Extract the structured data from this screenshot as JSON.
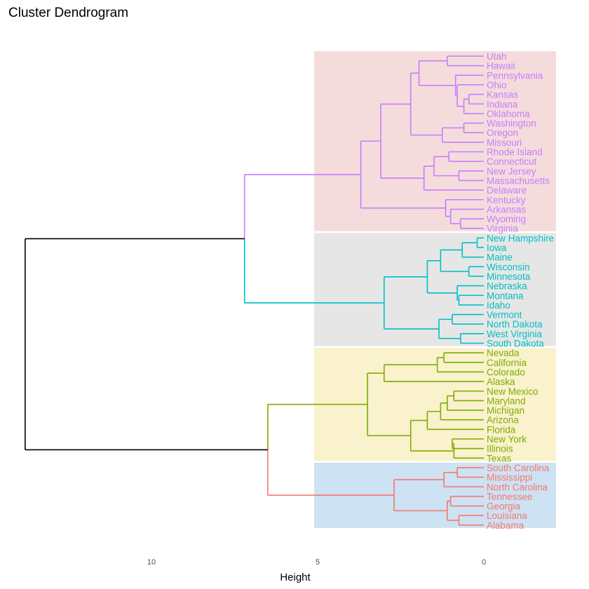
{
  "chart_data": {
    "type": "dendrogram",
    "title": "Cluster Dendrogram",
    "xlabel": "Height",
    "ylabel": "",
    "x_ticks": [
      10,
      5,
      0
    ],
    "orientation": "horizontal",
    "x_reversed": true,
    "leaves": [
      "Utah",
      "Hawaii",
      "Pennsylvania",
      "Ohio",
      "Kansas",
      "Indiana",
      "Oklahoma",
      "Washington",
      "Oregon",
      "Missouri",
      "Rhode Island",
      "Connecticut",
      "New Jersey",
      "Massachusetts",
      "Delaware",
      "Kentucky",
      "Arkansas",
      "Wyoming",
      "Virginia",
      "New Hampshire",
      "Iowa",
      "Maine",
      "Wisconsin",
      "Minnesota",
      "Nebraska",
      "Montana",
      "Idaho",
      "Vermont",
      "North Dakota",
      "West Virginia",
      "South Dakota",
      "Nevada",
      "California",
      "Colorado",
      "Alaska",
      "New Mexico",
      "Maryland",
      "Michigan",
      "Arizona",
      "Florida",
      "New York",
      "Illinois",
      "Texas",
      "South Carolina",
      "Mississippi",
      "North Carolina",
      "Tennessee",
      "Georgia",
      "Louisiana",
      "Alabama"
    ],
    "merges": [
      {
        "a": "Utah",
        "b": "Hawaii",
        "h": 1.1,
        "id": "m1"
      },
      {
        "a": "Kansas",
        "b": "Indiana",
        "h": 0.45,
        "id": "m2"
      },
      {
        "a": "m2",
        "b": "Oklahoma",
        "h": 0.6,
        "id": "m3"
      },
      {
        "a": "Ohio",
        "b": "m3",
        "h": 0.8,
        "id": "m4"
      },
      {
        "a": "Pennsylvania",
        "b": "m4",
        "h": 0.85,
        "id": "m5"
      },
      {
        "a": "m1",
        "b": "m5",
        "h": 1.95,
        "id": "m6"
      },
      {
        "a": "Washington",
        "b": "Oregon",
        "h": 0.6,
        "id": "m7"
      },
      {
        "a": "m7",
        "b": "Missouri",
        "h": 1.25,
        "id": "m8"
      },
      {
        "a": "m6",
        "b": "m8",
        "h": 2.2,
        "id": "m9"
      },
      {
        "a": "Rhode Island",
        "b": "Connecticut",
        "h": 1.05,
        "id": "m10"
      },
      {
        "a": "New Jersey",
        "b": "Massachusetts",
        "h": 0.75,
        "id": "m11"
      },
      {
        "a": "m10",
        "b": "m11",
        "h": 1.5,
        "id": "m12"
      },
      {
        "a": "m12",
        "b": "Delaware",
        "h": 1.8,
        "id": "m13"
      },
      {
        "a": "m9",
        "b": "m13",
        "h": 3.1,
        "id": "m14"
      },
      {
        "a": "Wyoming",
        "b": "Virginia",
        "h": 0.7,
        "id": "m15"
      },
      {
        "a": "Arkansas",
        "b": "m15",
        "h": 1.0,
        "id": "m16"
      },
      {
        "a": "Kentucky",
        "b": "m16",
        "h": 1.15,
        "id": "m17"
      },
      {
        "a": "m14",
        "b": "m17",
        "h": 3.7,
        "id": "m18"
      },
      {
        "a": "New Hampshire",
        "b": "Iowa",
        "h": 0.2,
        "id": "m19"
      },
      {
        "a": "m19",
        "b": "Maine",
        "h": 0.65,
        "id": "m20"
      },
      {
        "a": "Wisconsin",
        "b": "Minnesota",
        "h": 0.45,
        "id": "m21"
      },
      {
        "a": "m20",
        "b": "m21",
        "h": 1.3,
        "id": "m22"
      },
      {
        "a": "Montana",
        "b": "Idaho",
        "h": 0.75,
        "id": "m23"
      },
      {
        "a": "Nebraska",
        "b": "m23",
        "h": 0.8,
        "id": "m24"
      },
      {
        "a": "m22",
        "b": "m24",
        "h": 1.7,
        "id": "m25"
      },
      {
        "a": "Vermont",
        "b": "North Dakota",
        "h": 0.95,
        "id": "m26"
      },
      {
        "a": "West Virginia",
        "b": "South Dakota",
        "h": 0.7,
        "id": "m27"
      },
      {
        "a": "m26",
        "b": "m27",
        "h": 1.35,
        "id": "m28"
      },
      {
        "a": "m25",
        "b": "m28",
        "h": 3.0,
        "id": "m29"
      },
      {
        "a": "m18",
        "b": "m29",
        "h": 7.2,
        "id": "m30"
      },
      {
        "a": "Nevada",
        "b": "California",
        "h": 1.2,
        "id": "m31"
      },
      {
        "a": "m31",
        "b": "Colorado",
        "h": 1.4,
        "id": "m32"
      },
      {
        "a": "m32",
        "b": "Alaska",
        "h": 3.0,
        "id": "m33"
      },
      {
        "a": "New Mexico",
        "b": "Maryland",
        "h": 0.9,
        "id": "m34"
      },
      {
        "a": "m34",
        "b": "Michigan",
        "h": 1.1,
        "id": "m35"
      },
      {
        "a": "m35",
        "b": "Arizona",
        "h": 1.3,
        "id": "m36"
      },
      {
        "a": "m36",
        "b": "Florida",
        "h": 1.7,
        "id": "m37"
      },
      {
        "a": "New York",
        "b": "Illinois",
        "h": 0.95,
        "id": "m38"
      },
      {
        "a": "m38",
        "b": "Texas",
        "h": 0.9,
        "id": "m39"
      },
      {
        "a": "m37",
        "b": "m39",
        "h": 2.2,
        "id": "m40"
      },
      {
        "a": "m33",
        "b": "m40",
        "h": 3.5,
        "id": "m41"
      },
      {
        "a": "South Carolina",
        "b": "Mississippi",
        "h": 0.8,
        "id": "m42"
      },
      {
        "a": "m42",
        "b": "North Carolina",
        "h": 1.2,
        "id": "m43"
      },
      {
        "a": "Tennessee",
        "b": "Georgia",
        "h": 1.0,
        "id": "m44"
      },
      {
        "a": "Louisiana",
        "b": "Alabama",
        "h": 0.75,
        "id": "m45"
      },
      {
        "a": "m44",
        "b": "m45",
        "h": 1.1,
        "id": "m46"
      },
      {
        "a": "m43",
        "b": "m46",
        "h": 2.7,
        "id": "m47"
      },
      {
        "a": "m41",
        "b": "m47",
        "h": 6.5,
        "id": "m48"
      },
      {
        "a": "m30",
        "b": "m48",
        "h": 13.8,
        "id": "m49"
      }
    ],
    "clusters": [
      {
        "first": 0,
        "last": 18,
        "color": "#c77cff",
        "bg": "#f4dcdc"
      },
      {
        "first": 19,
        "last": 30,
        "color": "#00bfc4",
        "bg": "#e6e6e6"
      },
      {
        "first": 31,
        "last": 42,
        "color": "#7cae00",
        "bg": "#faf1cd"
      },
      {
        "first": 43,
        "last": 49,
        "color": "#f8766d",
        "bg": "#cde2f3"
      }
    ],
    "cluster_cut_height": 7.2,
    "trunk_color": "#000000",
    "grid": false
  }
}
